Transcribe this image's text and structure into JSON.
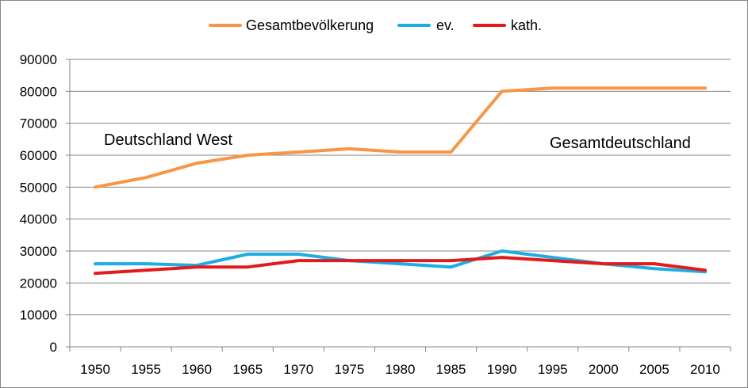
{
  "chart_data": {
    "type": "line",
    "categories": [
      "1950",
      "1955",
      "1960",
      "1965",
      "1970",
      "1975",
      "1980",
      "1985",
      "1990",
      "1995",
      "2000",
      "2005",
      "2010"
    ],
    "series": [
      {
        "name": "Gesamtbevölkerung",
        "color": "#F79646",
        "values": [
          50000,
          53000,
          57500,
          60000,
          61000,
          62000,
          61000,
          61000,
          80000,
          81000,
          81000,
          81000,
          81000
        ]
      },
      {
        "name": "ev.",
        "color": "#1CADE4",
        "values": [
          26000,
          26000,
          25500,
          29000,
          29000,
          27000,
          26000,
          25000,
          30000,
          28000,
          26000,
          24500,
          23500
        ]
      },
      {
        "name": "kath.",
        "color": "#E31A1C",
        "values": [
          23000,
          24000,
          25000,
          25000,
          27000,
          27000,
          27000,
          27000,
          28000,
          27000,
          26000,
          26000,
          24000
        ]
      }
    ],
    "yticks": [
      "0",
      "10000",
      "20000",
      "30000",
      "40000",
      "50000",
      "60000",
      "70000",
      "80000",
      "90000"
    ],
    "ylim": [
      0,
      90000
    ],
    "grid": true,
    "legend_position": "top",
    "annotations": [
      {
        "text": "Deutschland West"
      },
      {
        "text": "Gesamtdeutschland"
      }
    ]
  }
}
